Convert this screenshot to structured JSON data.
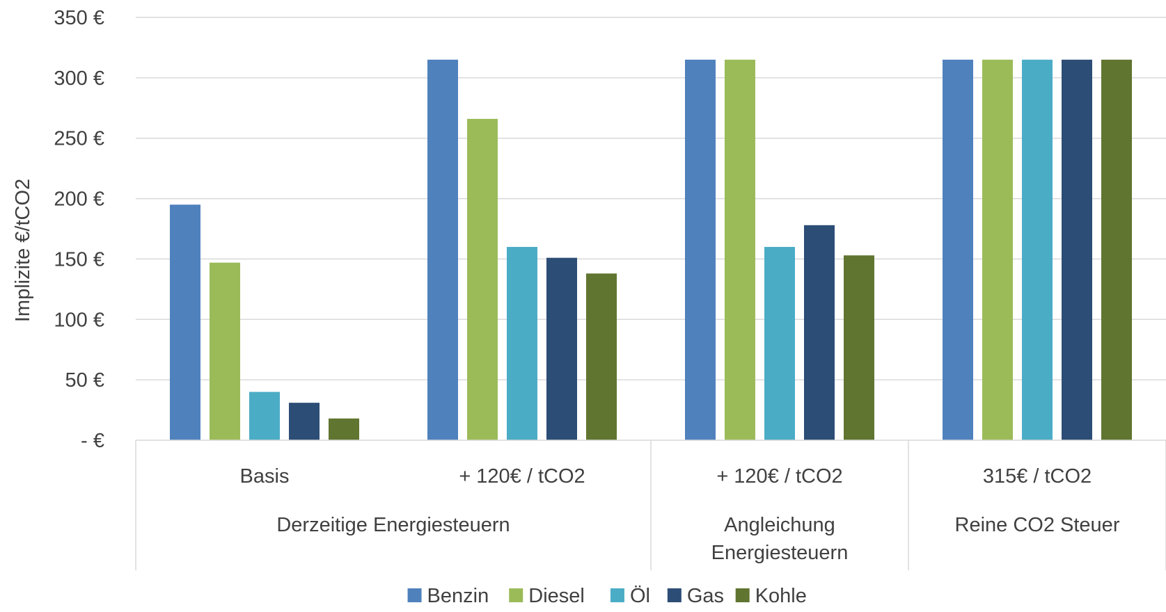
{
  "chart_data": {
    "type": "bar",
    "ylabel": "Implizite €/tCO2",
    "ylim": [
      0,
      350
    ],
    "y_ticks": [
      {
        "value": 0,
        "label": "-   €"
      },
      {
        "value": 50,
        "label": "50 €"
      },
      {
        "value": 100,
        "label": "100 €"
      },
      {
        "value": 150,
        "label": "150 €"
      },
      {
        "value": 200,
        "label": "200 €"
      },
      {
        "value": 250,
        "label": "250 €"
      },
      {
        "value": 300,
        "label": "300 €"
      },
      {
        "value": 350,
        "label": "350 €"
      }
    ],
    "grid": true,
    "legend_position": "bottom",
    "categories": [
      "Basis",
      "+ 120€ / tCO2",
      "+ 120€ / tCO2",
      "315€ / tCO2"
    ],
    "groups": [
      {
        "label_lines": [
          "Derzeitige Energiesteuern"
        ],
        "span": [
          0,
          1
        ]
      },
      {
        "label_lines": [
          "Angleichung",
          "Energiesteuern"
        ],
        "span": [
          2,
          2
        ]
      },
      {
        "label_lines": [
          "Reine CO2 Steuer"
        ],
        "span": [
          3,
          3
        ]
      }
    ],
    "series": [
      {
        "name": "Benzin",
        "color": "#4F81BD",
        "values": [
          195,
          315,
          315,
          315
        ]
      },
      {
        "name": "Diesel",
        "color": "#9BBB59",
        "values": [
          147,
          266,
          315,
          315
        ]
      },
      {
        "name": "Öl",
        "color": "#4BACC6",
        "values": [
          40,
          160,
          160,
          315
        ]
      },
      {
        "name": "Gas",
        "color": "#2C4D75",
        "values": [
          31,
          151,
          178,
          315
        ]
      },
      {
        "name": "Kohle",
        "color": "#607530",
        "values": [
          18,
          138,
          153,
          315
        ]
      }
    ]
  }
}
